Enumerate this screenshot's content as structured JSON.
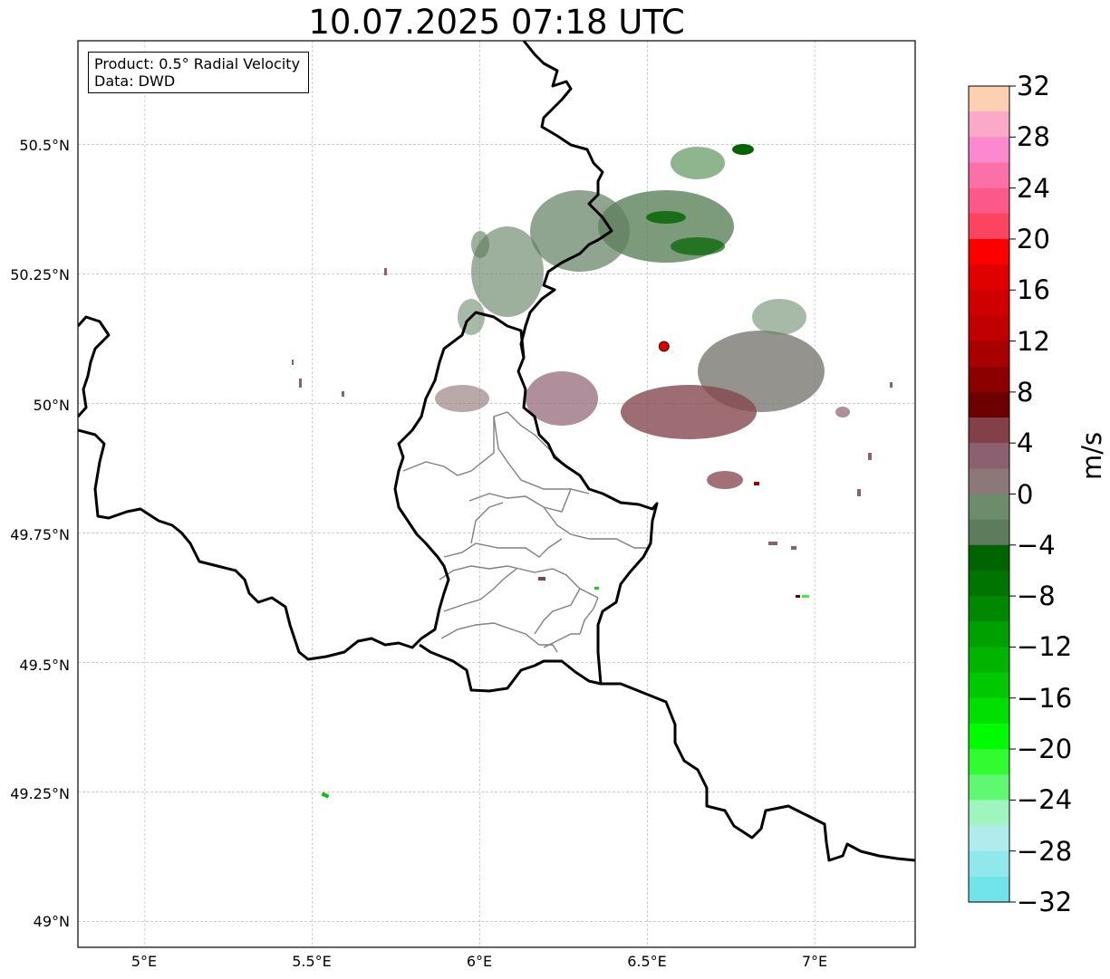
{
  "title": "10.07.2025 07:18 UTC",
  "info_box": {
    "product": "Product: 0.5° Radial Velocity",
    "data_source": "Data: DWD"
  },
  "map": {
    "lon_range": [
      4.8,
      7.3
    ],
    "lat_range": [
      48.95,
      50.7
    ],
    "gridlines": true,
    "lat_ticks": [
      50.5,
      50.25,
      50.0,
      49.75,
      49.5,
      49.25,
      49.0
    ],
    "lat_labels": [
      "50.5°N",
      "50.25°N",
      "50°N",
      "49.75°N",
      "49.5°N",
      "49.25°N",
      "49°N"
    ],
    "lon_ticks": [
      5.0,
      5.5,
      6.0,
      6.5,
      7.0
    ],
    "lon_labels": [
      "5°E",
      "5.5°E",
      "6°E",
      "6.5°E",
      "7°E"
    ],
    "radar_site": {
      "lon": 6.55,
      "lat": 50.11,
      "color": "#e00000"
    },
    "border_color": "#000000",
    "district_color": "#808080"
  },
  "colorbar": {
    "label": "m/s",
    "min": -32,
    "max": 32,
    "tick_values": [
      32,
      28,
      24,
      20,
      16,
      12,
      8,
      4,
      0,
      -4,
      -8,
      -12,
      -16,
      -20,
      -24,
      -28,
      -32
    ],
    "tick_labels": [
      "32",
      "28",
      "24",
      "20",
      "16",
      "12",
      "8",
      "4",
      "0",
      "−4",
      "−8",
      "−12",
      "−16",
      "−20",
      "−24",
      "−28",
      "−32"
    ],
    "colors": [
      "#fcd0b0",
      "#fca8c8",
      "#fc88d0",
      "#fc70a8",
      "#fc5888",
      "#fc4460",
      "#fc0000",
      "#e00000",
      "#d00000",
      "#c00000",
      "#a80000",
      "#8c0000",
      "#6c0000",
      "#844048",
      "#8c6070",
      "#8c7878",
      "#6c8c6c",
      "#5c7c5c",
      "#006400",
      "#007400",
      "#008800",
      "#00a000",
      "#00b400",
      "#00c800",
      "#00e000",
      "#00fc00",
      "#30fc30",
      "#60f870",
      "#a0f4c0",
      "#b0ecec",
      "#90e8ec",
      "#70e4e8"
    ]
  }
}
